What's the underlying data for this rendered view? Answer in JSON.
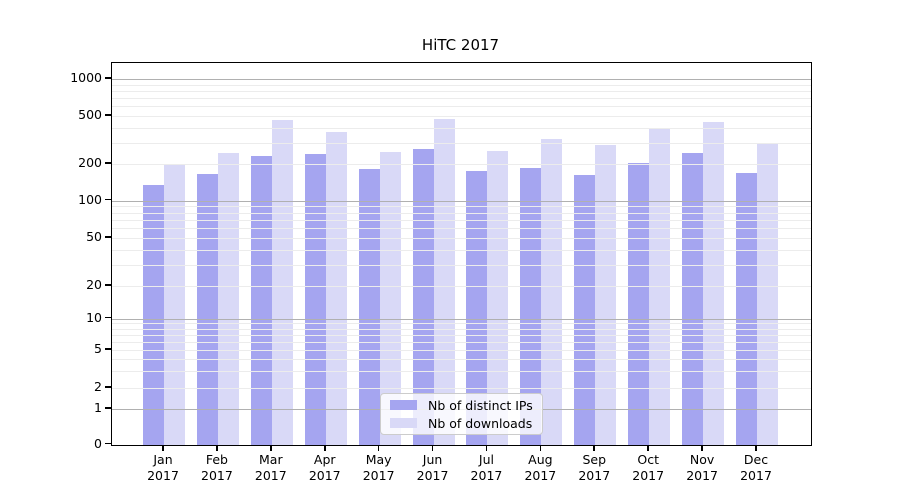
{
  "chart_data": {
    "type": "bar",
    "title": "HiTC 2017",
    "x_labels": [
      [
        "Jan",
        "2017"
      ],
      [
        "Feb",
        "2017"
      ],
      [
        "Mar",
        "2017"
      ],
      [
        "Apr",
        "2017"
      ],
      [
        "May",
        "2017"
      ],
      [
        "Jun",
        "2017"
      ],
      [
        "Jul",
        "2017"
      ],
      [
        "Aug",
        "2017"
      ],
      [
        "Sep",
        "2017"
      ],
      [
        "Oct",
        "2017"
      ],
      [
        "Nov",
        "2017"
      ],
      [
        "Dec",
        "2017"
      ]
    ],
    "series": [
      {
        "name": "Nb of distinct IPs",
        "color": "#a5a5f0",
        "values": [
          133,
          165,
          235,
          240,
          182,
          265,
          175,
          186,
          161,
          205,
          245,
          168
        ]
      },
      {
        "name": "Nb of downloads",
        "color": "#d9d9f7",
        "values": [
          200,
          246,
          460,
          368,
          251,
          470,
          255,
          320,
          290,
          400,
          445,
          300
        ]
      }
    ],
    "y_axis": {
      "scale": "symlog",
      "tick_labels": [
        0,
        1,
        2,
        5,
        10,
        20,
        50,
        100,
        200,
        500,
        1000
      ],
      "major_gridlines": [
        1,
        10,
        100,
        1000
      ],
      "minor_gridlines": [
        2,
        3,
        4,
        5,
        6,
        7,
        8,
        9,
        20,
        30,
        40,
        50,
        60,
        70,
        80,
        90,
        200,
        300,
        400,
        500,
        600,
        700,
        800,
        900
      ],
      "range": [
        0,
        1400
      ]
    },
    "legend": {
      "position": "lower center"
    },
    "grid": true
  }
}
